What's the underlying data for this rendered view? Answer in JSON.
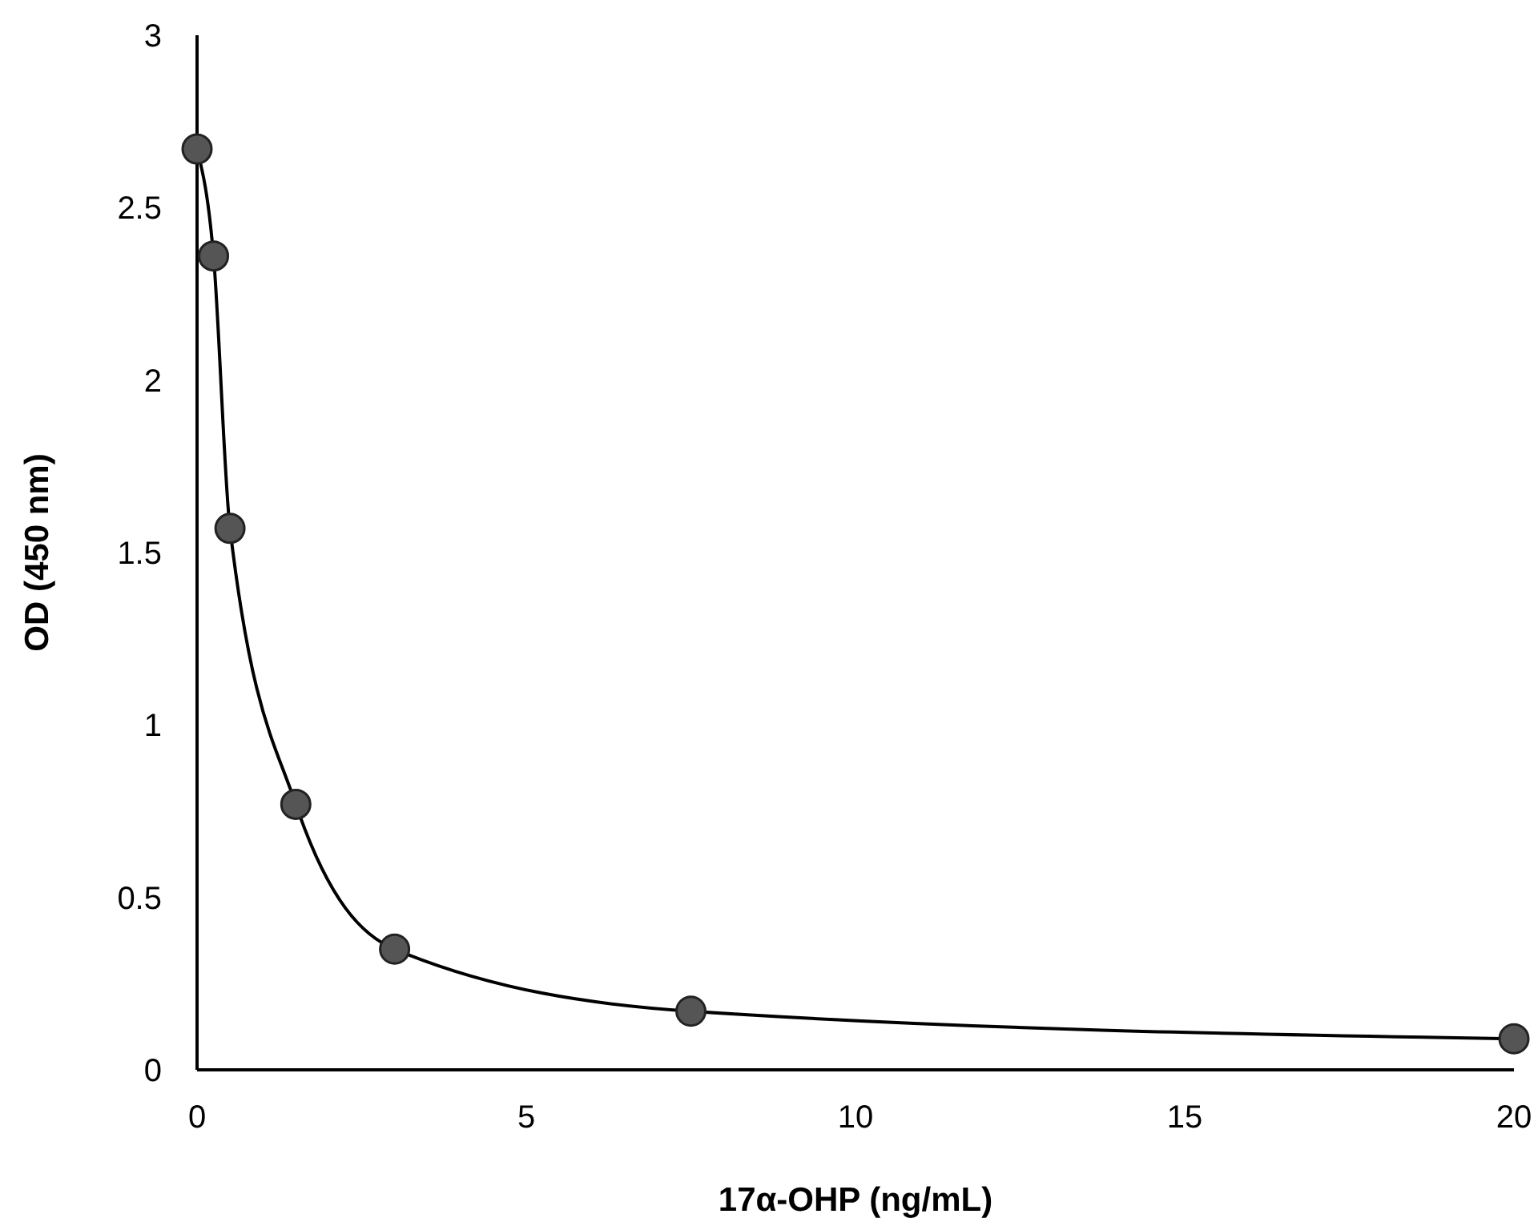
{
  "chart_data": {
    "type": "line",
    "xlabel": "17α-OHP (ng/mL)",
    "ylabel": "OD (450 nm)",
    "xlim": [
      0,
      20
    ],
    "xticks": [
      0,
      5,
      10,
      15,
      20
    ],
    "ylim": [
      0,
      3
    ],
    "yticks": [
      0,
      0.5,
      1,
      1.5,
      2,
      2.5,
      3
    ],
    "grid": false,
    "marker": "circle",
    "line_style": "solid",
    "series": [
      {
        "color": "#000000",
        "x": [
          0,
          0.25,
          0.5,
          1.5,
          3,
          7.5,
          20
        ],
        "values": [
          2.67,
          2.36,
          1.57,
          0.77,
          0.35,
          0.17,
          0.09
        ]
      }
    ]
  }
}
